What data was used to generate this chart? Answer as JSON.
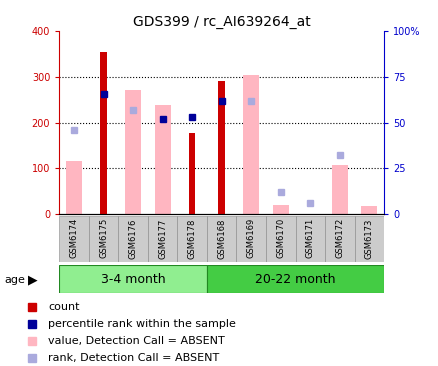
{
  "title": "GDS399 / rc_AI639264_at",
  "categories": [
    "GSM6174",
    "GSM6175",
    "GSM6176",
    "GSM6177",
    "GSM6178",
    "GSM6168",
    "GSM6169",
    "GSM6170",
    "GSM6171",
    "GSM6172",
    "GSM6173"
  ],
  "groups": [
    {
      "label": "3-4 month",
      "start": 0,
      "end": 4,
      "color": "#90EE90"
    },
    {
      "label": "20-22 month",
      "start": 5,
      "end": 10,
      "color": "#44CC44"
    }
  ],
  "count_values": [
    null,
    355,
    null,
    null,
    178,
    290,
    null,
    null,
    null,
    null,
    null
  ],
  "percentile_values": [
    null,
    262,
    null,
    207,
    213,
    247,
    null,
    null,
    null,
    null,
    null
  ],
  "absent_value_values": [
    115,
    null,
    272,
    238,
    null,
    null,
    303,
    20,
    null,
    108,
    18
  ],
  "absent_rank_values": [
    183,
    null,
    228,
    null,
    null,
    null,
    248,
    48,
    25,
    130,
    null
  ],
  "ylim": [
    0,
    400
  ],
  "y2lim": [
    0,
    100
  ],
  "yticks": [
    0,
    100,
    200,
    300,
    400
  ],
  "ytick_labels": [
    "0",
    "100",
    "200",
    "300",
    "400"
  ],
  "y2ticks": [
    0,
    25,
    50,
    75,
    100
  ],
  "y2tick_labels": [
    "0",
    "25",
    "50",
    "75",
    "100%"
  ],
  "count_color": "#CC0000",
  "percentile_color": "#000099",
  "absent_value_color": "#FFB6C1",
  "absent_rank_color": "#AAAADD",
  "left_axis_color": "#CC0000",
  "right_axis_color": "#0000CC",
  "grid_color": "#000000",
  "age_label": "age",
  "legend_items": [
    {
      "color": "#CC0000",
      "label": "count"
    },
    {
      "color": "#000099",
      "label": "percentile rank within the sample"
    },
    {
      "color": "#FFB6C1",
      "label": "value, Detection Call = ABSENT"
    },
    {
      "color": "#AAAADD",
      "label": "rank, Detection Call = ABSENT"
    }
  ],
  "title_fontsize": 10,
  "tick_fontsize": 7,
  "legend_fontsize": 8,
  "cat_fontsize": 6,
  "group_fontsize": 9
}
